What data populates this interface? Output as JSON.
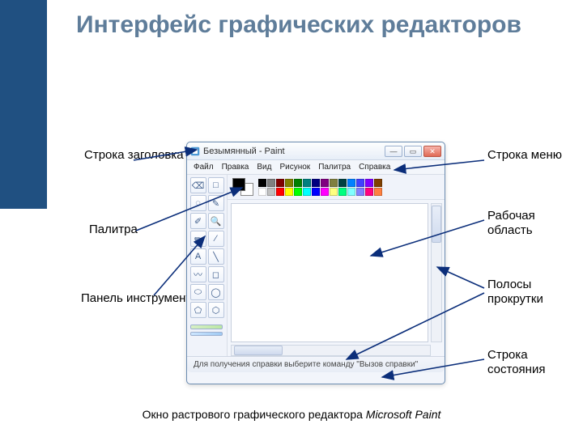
{
  "slide": {
    "title": "Интерфейс графических редакторов",
    "caption_prefix": "Окно растрового графического редактора ",
    "caption_app": "Microsoft Paint"
  },
  "labels": {
    "title_bar": "Строка заголовка",
    "palette": "Палитра",
    "toolbox": "Панель инструментов",
    "menu_bar": "Строка меню",
    "work_area": "Рабочая область",
    "scrollbars": "Полосы прокрутки",
    "status_bar": "Строка состояния"
  },
  "paint": {
    "window_title": "Безымянный - Paint",
    "menus": [
      "Файл",
      "Правка",
      "Вид",
      "Рисунок",
      "Палитра",
      "Справка"
    ],
    "tool_glyphs": [
      "⌫",
      "□",
      "◌",
      "✎",
      "✐",
      "🔍",
      "✏",
      "⁄",
      "A",
      "╲",
      "〰",
      "◻",
      "⬭",
      "◯",
      "⬠",
      "⬡"
    ],
    "palette_colors_row1": [
      "#000000",
      "#808080",
      "#800000",
      "#808000",
      "#008000",
      "#008080",
      "#000080",
      "#800080",
      "#808040",
      "#004040",
      "#0080ff",
      "#4040ff",
      "#8000ff",
      "#804000"
    ],
    "palette_colors_row2": [
      "#ffffff",
      "#c0c0c0",
      "#ff0000",
      "#ffff00",
      "#00ff00",
      "#00ffff",
      "#0000ff",
      "#ff00ff",
      "#ffff80",
      "#00ff80",
      "#80ffff",
      "#8080ff",
      "#ff0080",
      "#ff8040"
    ],
    "status_text": "Для получения справки выберите команду \"Вызов справки\""
  },
  "style": {
    "sidebar_color": "#205081",
    "title_color": "#5f7d9a",
    "arrow_color": "#0b2e7a"
  }
}
